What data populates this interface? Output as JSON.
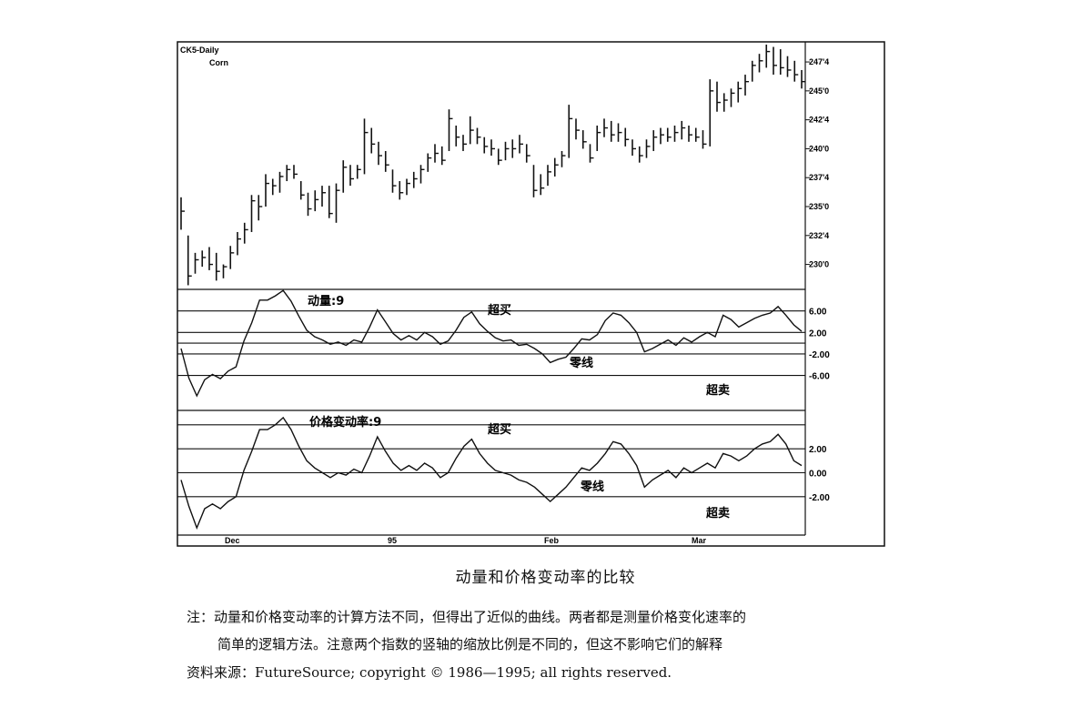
{
  "chart_data": [
    {
      "type": "bar",
      "subtype": "ohlc-daily",
      "title": "CK5-Daily",
      "subtitle": "Corn",
      "y_ticks": [
        "247'4",
        "245'0",
        "242'4",
        "240'0",
        "237'4",
        "235'0",
        "232'4",
        "230'0"
      ],
      "y_tick_values": [
        247.5,
        245.0,
        242.5,
        240.0,
        237.5,
        235.0,
        232.5,
        230.0
      ],
      "ylim": [
        228.0,
        249.0
      ],
      "x_ticks": [
        "Dec",
        "95",
        "Feb",
        "Mar"
      ],
      "grid": false,
      "bars": [
        {
          "high": 235.8,
          "low": 233.0,
          "close": 234.6
        },
        {
          "high": 232.5,
          "low": 228.2,
          "close": 229.0
        },
        {
          "high": 231.0,
          "low": 229.2,
          "close": 230.4
        },
        {
          "high": 231.2,
          "low": 229.8,
          "close": 230.6
        },
        {
          "high": 231.5,
          "low": 229.5,
          "close": 230.0
        },
        {
          "high": 231.0,
          "low": 228.6,
          "close": 229.4
        },
        {
          "high": 230.0,
          "low": 228.8,
          "close": 229.8
        },
        {
          "high": 231.6,
          "low": 229.6,
          "close": 231.0
        },
        {
          "high": 232.8,
          "low": 230.8,
          "close": 232.2
        },
        {
          "high": 233.6,
          "low": 231.8,
          "close": 233.0
        },
        {
          "high": 236.0,
          "low": 232.8,
          "close": 235.5
        },
        {
          "high": 236.0,
          "low": 233.8,
          "close": 235.0
        },
        {
          "high": 237.8,
          "low": 235.0,
          "close": 237.0
        },
        {
          "high": 237.4,
          "low": 236.0,
          "close": 236.8
        },
        {
          "high": 238.0,
          "low": 236.2,
          "close": 237.6
        },
        {
          "high": 238.6,
          "low": 237.2,
          "close": 238.2
        },
        {
          "high": 238.6,
          "low": 237.4,
          "close": 237.8
        },
        {
          "high": 237.2,
          "low": 235.6,
          "close": 236.0
        },
        {
          "high": 236.2,
          "low": 234.2,
          "close": 234.8
        },
        {
          "high": 236.4,
          "low": 234.6,
          "close": 235.6
        },
        {
          "high": 236.8,
          "low": 235.0,
          "close": 236.2
        },
        {
          "high": 236.8,
          "low": 234.0,
          "close": 234.4
        },
        {
          "high": 237.0,
          "low": 233.6,
          "close": 236.4
        },
        {
          "high": 239.0,
          "low": 236.2,
          "close": 238.4
        },
        {
          "high": 238.6,
          "low": 236.8,
          "close": 237.4
        },
        {
          "high": 238.6,
          "low": 237.4,
          "close": 238.2
        },
        {
          "high": 242.6,
          "low": 237.8,
          "close": 241.4
        },
        {
          "high": 241.8,
          "low": 239.6,
          "close": 240.4
        },
        {
          "high": 240.6,
          "low": 238.6,
          "close": 239.4
        },
        {
          "high": 239.8,
          "low": 238.0,
          "close": 238.6
        },
        {
          "high": 238.2,
          "low": 236.2,
          "close": 236.8
        },
        {
          "high": 237.2,
          "low": 235.6,
          "close": 236.2
        },
        {
          "high": 237.4,
          "low": 236.0,
          "close": 237.0
        },
        {
          "high": 238.0,
          "low": 236.6,
          "close": 237.4
        },
        {
          "high": 238.6,
          "low": 237.0,
          "close": 238.2
        },
        {
          "high": 239.6,
          "low": 238.0,
          "close": 239.2
        },
        {
          "high": 240.4,
          "low": 238.8,
          "close": 239.6
        },
        {
          "high": 240.2,
          "low": 238.6,
          "close": 239.0
        },
        {
          "high": 243.4,
          "low": 239.8,
          "close": 242.6
        },
        {
          "high": 242.0,
          "low": 240.2,
          "close": 241.0
        },
        {
          "high": 241.2,
          "low": 239.8,
          "close": 240.4
        },
        {
          "high": 242.8,
          "low": 240.4,
          "close": 241.6
        },
        {
          "high": 241.8,
          "low": 240.4,
          "close": 241.0
        },
        {
          "high": 241.0,
          "low": 239.6,
          "close": 240.2
        },
        {
          "high": 240.8,
          "low": 239.4,
          "close": 240.0
        },
        {
          "high": 240.0,
          "low": 238.6,
          "close": 239.0
        },
        {
          "high": 240.6,
          "low": 239.0,
          "close": 240.0
        },
        {
          "high": 240.8,
          "low": 239.2,
          "close": 240.0
        },
        {
          "high": 241.2,
          "low": 239.6,
          "close": 240.4
        },
        {
          "high": 240.4,
          "low": 238.8,
          "close": 239.4
        },
        {
          "high": 238.6,
          "low": 235.8,
          "close": 236.4
        },
        {
          "high": 237.8,
          "low": 236.0,
          "close": 236.6
        },
        {
          "high": 238.6,
          "low": 236.8,
          "close": 238.0
        },
        {
          "high": 239.2,
          "low": 237.6,
          "close": 238.6
        },
        {
          "high": 239.8,
          "low": 238.4,
          "close": 239.4
        },
        {
          "high": 243.8,
          "low": 239.2,
          "close": 242.6
        },
        {
          "high": 242.6,
          "low": 240.8,
          "close": 241.6
        },
        {
          "high": 241.6,
          "low": 240.0,
          "close": 240.6
        },
        {
          "high": 240.4,
          "low": 238.8,
          "close": 239.2
        },
        {
          "high": 242.0,
          "low": 239.8,
          "close": 241.4
        },
        {
          "high": 242.6,
          "low": 241.0,
          "close": 241.8
        },
        {
          "high": 242.4,
          "low": 240.6,
          "close": 241.2
        },
        {
          "high": 242.2,
          "low": 240.6,
          "close": 241.4
        },
        {
          "high": 241.8,
          "low": 240.2,
          "close": 240.8
        },
        {
          "high": 240.8,
          "low": 239.4,
          "close": 240.0
        },
        {
          "high": 240.2,
          "low": 238.8,
          "close": 239.4
        },
        {
          "high": 240.8,
          "low": 239.2,
          "close": 240.2
        },
        {
          "high": 241.6,
          "low": 239.8,
          "close": 241.0
        },
        {
          "high": 241.8,
          "low": 240.4,
          "close": 241.2
        },
        {
          "high": 241.8,
          "low": 240.6,
          "close": 241.0
        },
        {
          "high": 242.0,
          "low": 240.6,
          "close": 241.4
        },
        {
          "high": 242.4,
          "low": 240.8,
          "close": 241.8
        },
        {
          "high": 242.0,
          "low": 240.6,
          "close": 241.2
        },
        {
          "high": 241.8,
          "low": 240.6,
          "close": 241.0
        },
        {
          "high": 241.6,
          "low": 240.0,
          "close": 240.4
        },
        {
          "high": 246.0,
          "low": 240.2,
          "close": 245.0
        },
        {
          "high": 245.8,
          "low": 243.2,
          "close": 244.0
        },
        {
          "high": 244.8,
          "low": 243.2,
          "close": 244.2
        },
        {
          "high": 245.2,
          "low": 243.6,
          "close": 244.8
        },
        {
          "high": 245.8,
          "low": 244.0,
          "close": 245.2
        },
        {
          "high": 246.4,
          "low": 244.6,
          "close": 245.8
        },
        {
          "high": 247.6,
          "low": 245.8,
          "close": 247.2
        },
        {
          "high": 248.2,
          "low": 246.6,
          "close": 247.6
        },
        {
          "high": 249.0,
          "low": 247.0,
          "close": 248.4
        },
        {
          "high": 248.8,
          "low": 246.4,
          "close": 247.2
        },
        {
          "high": 248.6,
          "low": 246.4,
          "close": 247.0
        },
        {
          "high": 248.0,
          "low": 246.2,
          "close": 246.8
        },
        {
          "high": 247.6,
          "low": 245.8,
          "close": 246.4
        },
        {
          "high": 246.8,
          "low": 245.2,
          "close": 245.8
        }
      ]
    },
    {
      "type": "line",
      "title": "动量:9",
      "y_ticks": [
        "6.00",
        "2.00",
        "-2.00",
        "-6.00"
      ],
      "y_tick_values": [
        6,
        2,
        -2,
        -6
      ],
      "ylim": [
        -12.5,
        10.0
      ],
      "reference_lines": [
        6,
        2,
        0,
        -2,
        -6
      ],
      "zones": {
        "upper": "超买",
        "zero": "零线",
        "lower": "超卖"
      },
      "series": [
        {
          "values": [
            -1.0,
            -6.5,
            -9.8,
            -6.8,
            -5.8,
            -6.6,
            -5.2,
            -4.4,
            0.4,
            3.8,
            8.0,
            8.0,
            8.8,
            9.8,
            7.8,
            5.0,
            2.4,
            1.2,
            0.6,
            -0.2,
            0.2,
            -0.4,
            0.6,
            0.2,
            3.0,
            6.2,
            4.0,
            1.8,
            0.6,
            1.4,
            0.6,
            2.0,
            1.2,
            -0.2,
            0.4,
            2.4,
            4.8,
            5.8,
            3.6,
            2.2,
            1.0,
            0.4,
            0.6,
            -0.4,
            -0.2,
            -1.0,
            -2.0,
            -3.6,
            -3.0,
            -2.6,
            -1.0,
            0.8,
            0.6,
            1.6,
            4.2,
            5.6,
            5.2,
            3.8,
            2.0,
            -1.6,
            -1.0,
            -0.2,
            0.6,
            -0.4,
            1.0,
            0.2,
            1.2,
            2.0,
            1.2,
            5.2,
            4.4,
            3.0,
            3.8,
            4.6,
            5.2,
            5.6,
            6.8,
            5.2,
            3.4,
            2.2
          ]
        }
      ]
    },
    {
      "type": "line",
      "title": "价格变动率:9",
      "y_ticks": [
        "2.00",
        "0.00",
        "-2.00"
      ],
      "y_tick_values": [
        2,
        0,
        -2
      ],
      "ylim": [
        -5.2,
        5.2
      ],
      "reference_lines": [
        4,
        2,
        0,
        -2
      ],
      "zones": {
        "upper": "超买",
        "zero": "零线",
        "lower": "超卖"
      },
      "series": [
        {
          "values": [
            -0.6,
            -2.8,
            -4.6,
            -3.0,
            -2.6,
            -3.0,
            -2.4,
            -2.0,
            0.2,
            1.8,
            3.6,
            3.6,
            4.0,
            4.6,
            3.6,
            2.2,
            1.0,
            0.4,
            0.0,
            -0.4,
            0.0,
            -0.2,
            0.3,
            0.0,
            1.4,
            3.0,
            1.8,
            0.8,
            0.2,
            0.6,
            0.2,
            0.8,
            0.4,
            -0.4,
            0.0,
            1.2,
            2.2,
            2.8,
            1.6,
            0.8,
            0.2,
            0.0,
            -0.2,
            -0.6,
            -0.8,
            -1.2,
            -1.8,
            -2.4,
            -1.8,
            -1.2,
            -0.4,
            0.4,
            0.2,
            0.8,
            1.6,
            2.6,
            2.4,
            1.6,
            0.6,
            -1.2,
            -0.6,
            -0.2,
            0.2,
            -0.4,
            0.4,
            0.0,
            0.4,
            0.8,
            0.4,
            1.6,
            1.4,
            1.0,
            1.4,
            2.0,
            2.4,
            2.6,
            3.2,
            2.4,
            1.0,
            0.6
          ]
        }
      ]
    }
  ],
  "caption": {
    "title": "动量和价格变动率的比较",
    "note_line1": "注：动量和价格变动率的计算方法不同，但得出了近似的曲线。两者都是测量价格变化速率的",
    "note_line2": "简单的逻辑方法。注意两个指数的竖轴的缩放比例是不同的，但这不影响它们的解释",
    "source_label": "资料来源：",
    "source_text": "FutureSource; copyright © 1986—1995; all rights reserved."
  }
}
